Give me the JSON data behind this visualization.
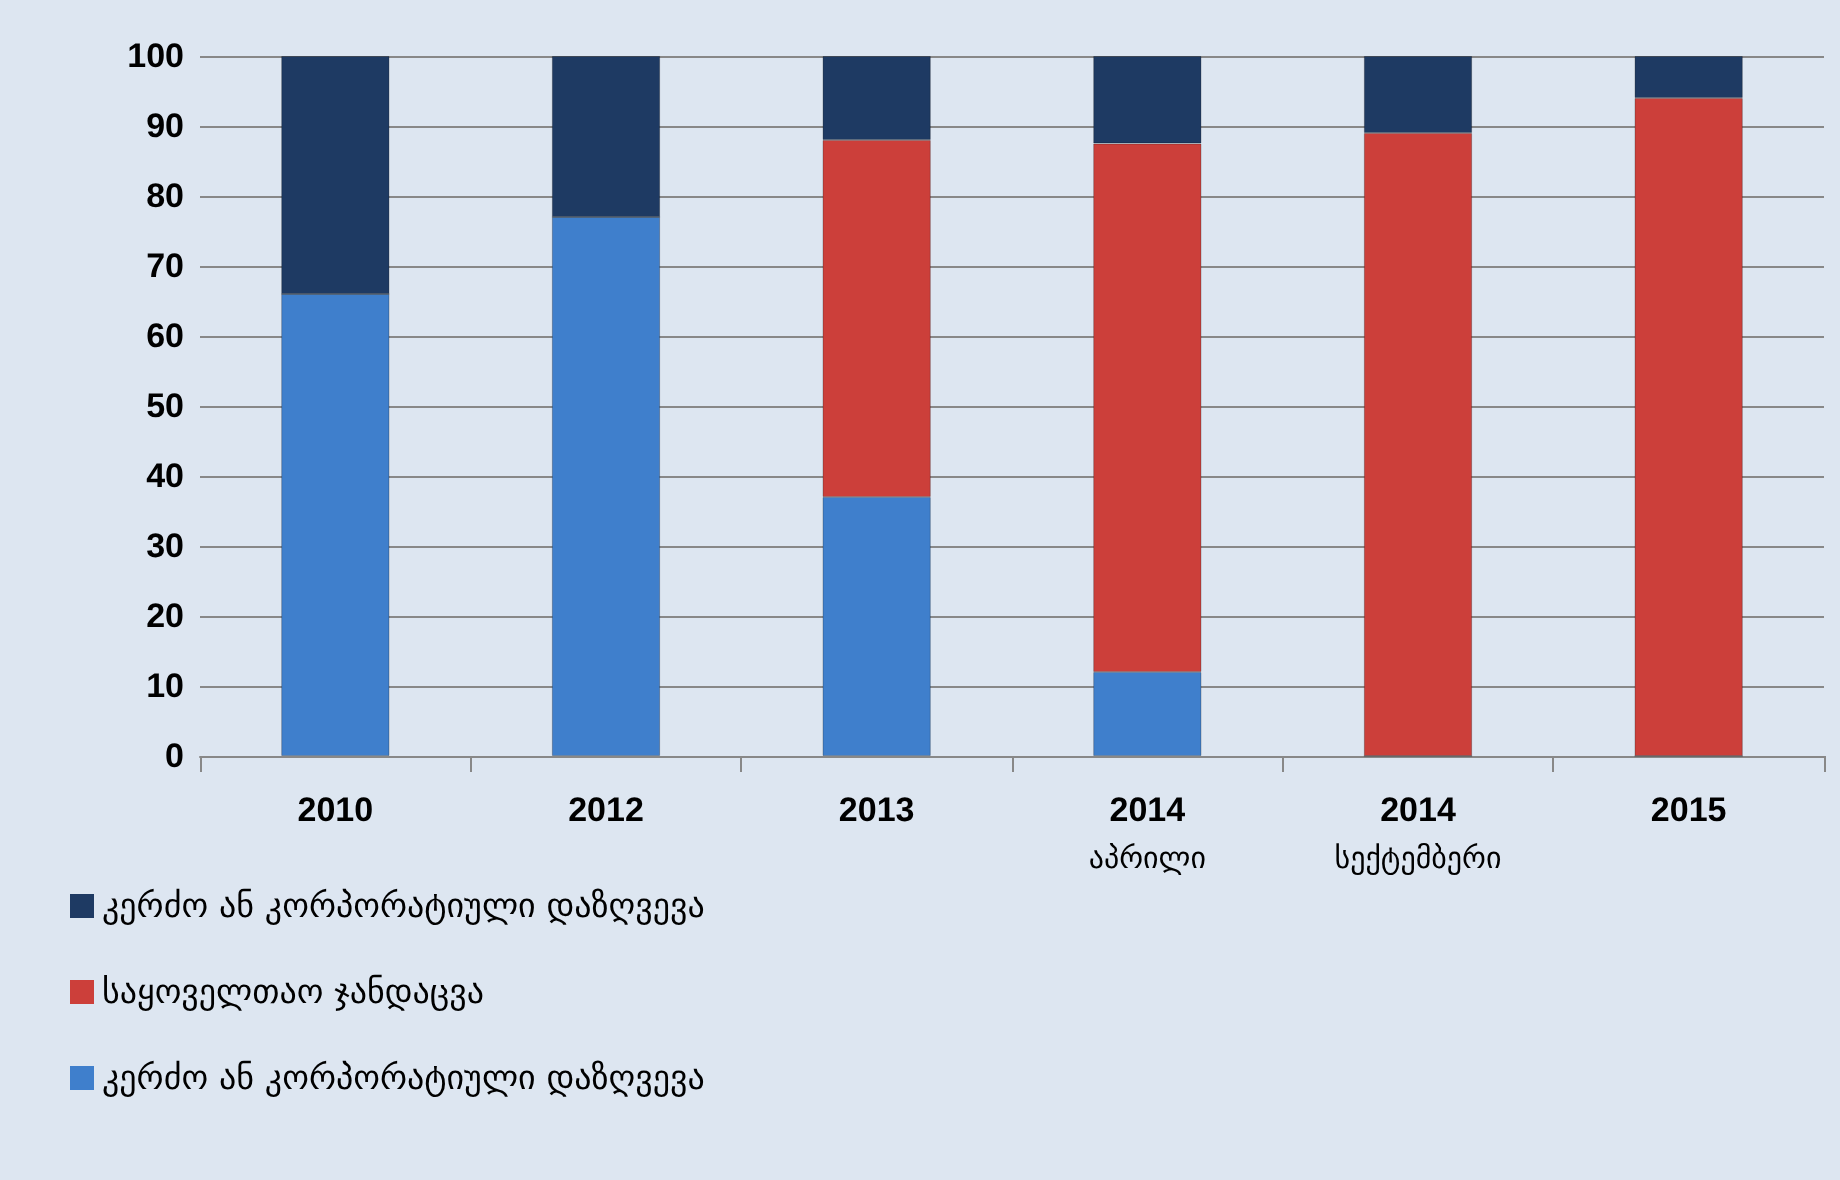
{
  "chart_data": {
    "type": "bar",
    "stacked": true,
    "categories": [
      "2010",
      "2012",
      "2013",
      "2014\nაპრილი",
      "2014\nსექტემბერი",
      "2015"
    ],
    "series": [
      {
        "name": "კერძო ან კორპორატიული დაზღვევა",
        "color": "#3f7fcc",
        "values": [
          66,
          77,
          37,
          12,
          0,
          0
        ]
      },
      {
        "name": "საყოველთაო ჯანდაცვა",
        "color": "#cc3f3a",
        "values": [
          0,
          0,
          51,
          75.5,
          89,
          94
        ]
      },
      {
        "name": "კერძო ან კორპორატიული დაზღვევა",
        "color": "#1e3a63",
        "values": [
          34,
          23,
          12,
          12.5,
          11,
          6
        ]
      }
    ],
    "ylim": [
      0,
      100
    ],
    "yticks": [
      0,
      10,
      20,
      30,
      40,
      50,
      60,
      70,
      80,
      90,
      100
    ],
    "grid": "y",
    "legend": "bottom left"
  }
}
